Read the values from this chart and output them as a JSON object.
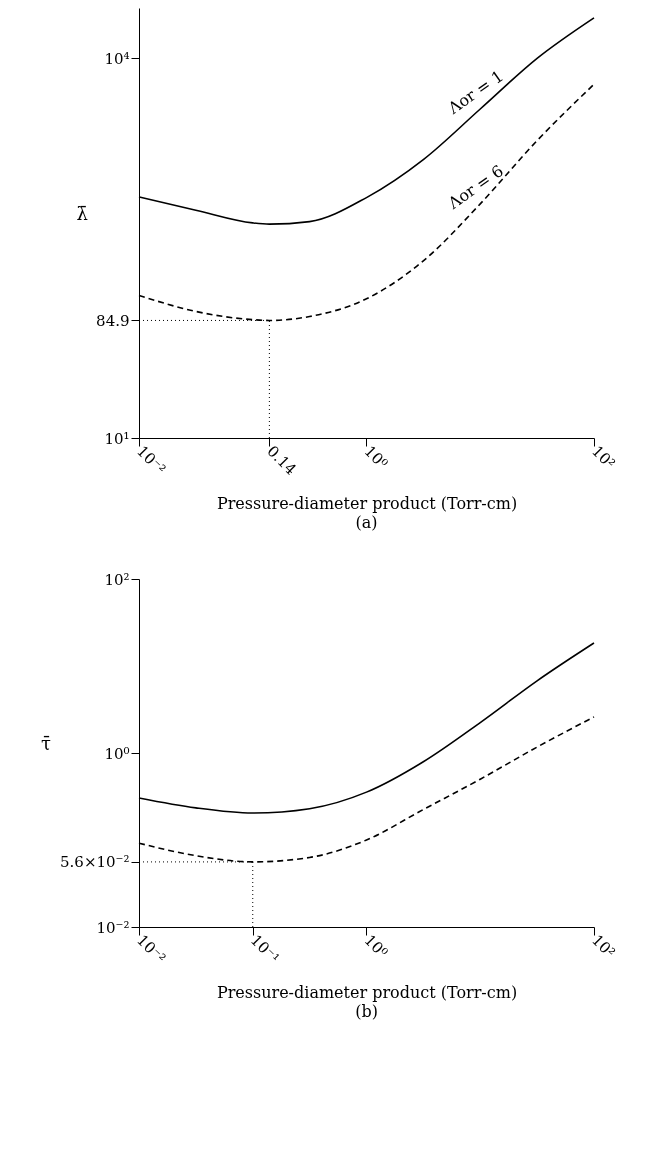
{
  "chart_data": [
    {
      "type": "line",
      "xlabel": "Pressure-diameter product (Torr-cm)",
      "ylabel": "λ̄",
      "log": "xy",
      "grid": false,
      "marker": "none",
      "xlim": [
        0.01,
        100
      ],
      "xticks": [
        {
          "value": 0.01,
          "label": "10⁻²"
        },
        0.14,
        {
          "value": 1,
          "label": "10⁰"
        },
        {
          "value": 100,
          "label": "10²"
        }
      ],
      "ylim": [
        10,
        25000
      ],
      "yticks": [
        {
          "value": 10,
          "label": "10¹"
        },
        84.9,
        {
          "value": 10000,
          "label": "10⁴"
        }
      ],
      "series": [
        {
          "color": "#000000",
          "line_style": "solid",
          "x": [
            0.01,
            0.0316,
            0.1,
            0.14,
            0.316,
            1,
            3.16,
            10,
            31.6,
            100
          ],
          "values": [
            804,
            631,
            501,
            490,
            513,
            794,
            1585,
            3981,
            10000,
            20900
          ]
        },
        {
          "color": "#000000",
          "line_style": "dashed",
          "x": [
            0.01,
            0.0316,
            0.1,
            0.14,
            0.316,
            1,
            3.16,
            10,
            31.6,
            100
          ],
          "values": [
            134,
            100,
            86.1,
            84.9,
            91.2,
            126,
            251,
            708,
            2239,
            6240
          ]
        }
      ],
      "ref_lines": [
        {
          "axis": "y",
          "value": 84.9,
          "line_style": "dotted"
        },
        {
          "axis": "x",
          "value": 0.14,
          "line_style": "dotted"
        }
      ],
      "annotations": [
        {
          "text": "Λor = 1",
          "x": 10,
          "y": 3981
        },
        {
          "text": "Λor = 6",
          "x": 10,
          "y": 708
        },
        "(a)"
      ]
    },
    {
      "type": "line",
      "xlabel": "Pressure-diameter product (Torr-cm)",
      "ylabel": "τ̄",
      "log": "xy",
      "grid": false,
      "marker": "none",
      "xlim": [
        0.01,
        100
      ],
      "xticks": [
        {
          "value": 0.01,
          "label": "10⁻²"
        },
        {
          "value": 0.1,
          "label": "10⁻¹"
        },
        {
          "value": 1,
          "label": "10⁰"
        },
        {
          "value": 100,
          "label": "10²"
        }
      ],
      "ylim": [
        0.01,
        100
      ],
      "yticks": [
        {
          "value": 0.01,
          "label": "10⁻²"
        },
        {
          "value": 0.056,
          "label": "5.6×10⁻²"
        },
        {
          "value": 1,
          "label": "10⁰"
        },
        {
          "value": 100,
          "label": "10²"
        }
      ],
      "series": [
        {
          "color": "#000000",
          "line_style": "solid",
          "x": [
            0.01,
            0.0316,
            0.1,
            0.316,
            1,
            3.16,
            10,
            31.6,
            100
          ],
          "values": [
            0.304,
            0.234,
            0.204,
            0.229,
            0.355,
            0.794,
            2.24,
            6.76,
            18.4
          ]
        },
        {
          "color": "#000000",
          "line_style": "dashed",
          "x": [
            0.01,
            0.0316,
            0.1,
            0.316,
            1,
            3.16,
            10,
            31.6,
            100
          ],
          "values": [
            0.092,
            0.066,
            0.056,
            0.063,
            0.1,
            0.224,
            0.5,
            1.17,
            2.6
          ]
        }
      ],
      "ref_lines": [
        {
          "axis": "y",
          "value": 0.056,
          "line_style": "dotted"
        },
        {
          "axis": "x",
          "value": 0.1,
          "line_style": "dotted"
        }
      ],
      "annotations": [
        "(b)"
      ]
    }
  ]
}
